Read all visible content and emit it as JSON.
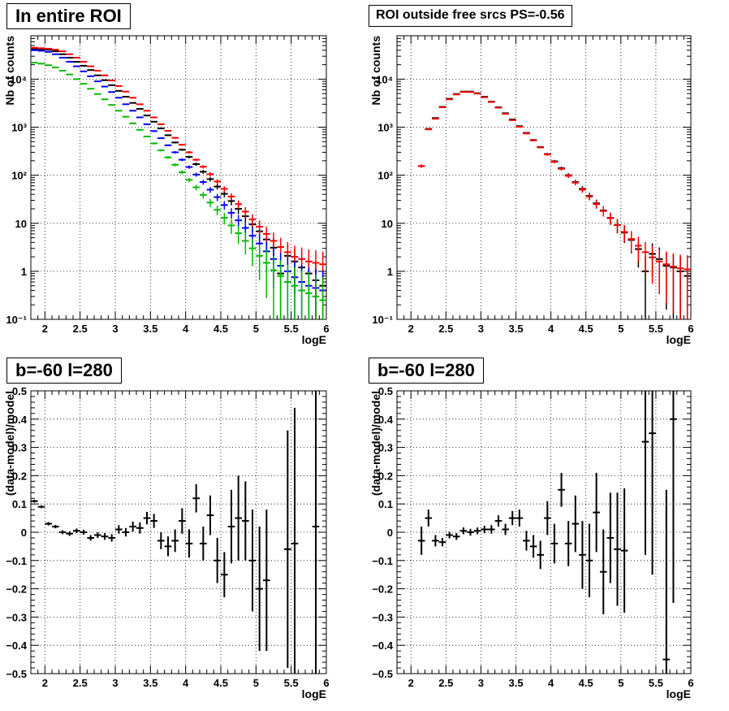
{
  "chart_data": [
    {
      "type": "scatter",
      "title": "In entire ROI",
      "xlabel": "logE",
      "ylabel": "Nb of counts",
      "xlim": [
        1.8,
        6.0
      ],
      "ylim": [
        0.1,
        80000
      ],
      "yscale": "log",
      "grid": true,
      "xticks": [
        2,
        2.5,
        3,
        3.5,
        4,
        4.5,
        5,
        5.5,
        6
      ],
      "xtick_labels": [
        "2",
        "2.5",
        "3",
        "3.5",
        "4",
        "4.5",
        "5",
        "5.5",
        "6"
      ],
      "yticks": [
        0.1,
        1,
        10,
        100,
        1000,
        10000
      ],
      "ytick_labels": [
        "10⁻¹",
        "1",
        "10",
        "10²",
        "10³",
        "10⁴"
      ],
      "x": [
        1.85,
        1.95,
        2.05,
        2.15,
        2.25,
        2.35,
        2.45,
        2.55,
        2.65,
        2.75,
        2.85,
        2.95,
        3.05,
        3.15,
        3.25,
        3.35,
        3.45,
        3.55,
        3.65,
        3.75,
        3.85,
        3.95,
        4.05,
        4.15,
        4.25,
        4.35,
        4.45,
        4.55,
        4.65,
        4.75,
        4.85,
        4.95,
        5.05,
        5.15,
        5.25,
        5.35,
        5.45,
        5.55,
        5.65,
        5.75,
        5.85,
        5.95
      ],
      "series": [
        {
          "color": "#000000",
          "values": [
            43000,
            42000,
            41000,
            38000,
            33000,
            28000,
            23000,
            19000,
            15500,
            12000,
            9500,
            7500,
            5700,
            4300,
            3200,
            2400,
            1750,
            1300,
            940,
            680,
            480,
            340,
            240,
            170,
            118,
            83,
            58,
            41,
            29,
            20,
            14,
            9.5,
            6.8,
            4.6,
            3.1,
            0.9,
            2.1,
            1.6,
            1.2,
            0.9,
            0.65,
            0.5
          ]
        },
        {
          "color": "#ff0000",
          "values": [
            45000,
            44000,
            43000,
            41000,
            38000,
            33000,
            28000,
            23000,
            18500,
            15000,
            12000,
            9400,
            7200,
            5500,
            4100,
            3000,
            2200,
            1600,
            1150,
            840,
            600,
            430,
            300,
            210,
            150,
            105,
            74,
            52,
            36,
            25,
            17.5,
            12,
            8.5,
            6,
            4.3,
            3.2,
            2.5,
            2,
            1.8,
            1.6,
            1.5,
            1.4
          ]
        },
        {
          "color": "#0000ff",
          "values": [
            40000,
            39000,
            37000,
            33000,
            28000,
            23000,
            18500,
            14500,
            11500,
            9000,
            7000,
            5400,
            4100,
            3000,
            2200,
            1600,
            1150,
            830,
            590,
            420,
            300,
            210,
            148,
            103,
            72,
            50,
            35,
            24,
            16.5,
            11.5,
            8,
            5.5,
            3.8,
            2.6,
            1.8,
            1.3,
            1.0,
            0.75,
            0.6,
            0.5,
            0.45,
            0.4
          ]
        },
        {
          "color": "#00bb00",
          "values": [
            22000,
            21000,
            19500,
            17500,
            15000,
            12500,
            10000,
            8000,
            6300,
            4900,
            3800,
            2900,
            2200,
            1650,
            1200,
            880,
            640,
            460,
            330,
            235,
            165,
            115,
            80,
            56,
            39,
            27,
            19,
            13,
            9,
            6.2,
            4.3,
            3,
            2.1,
            1.5,
            1.05,
            0.8,
            0.6,
            0.5,
            0.4,
            0.35,
            0.3,
            0.25
          ]
        }
      ]
    },
    {
      "type": "scatter",
      "title": "ROI outside free srcs PS=-0.56",
      "xlabel": "logE",
      "ylabel": "Nb of counts",
      "xlim": [
        1.8,
        6.0
      ],
      "ylim": [
        0.1,
        80000
      ],
      "yscale": "log",
      "grid": true,
      "xticks": [
        2,
        2.5,
        3,
        3.5,
        4,
        4.5,
        5,
        5.5,
        6
      ],
      "xtick_labels": [
        "2",
        "2.5",
        "3",
        "3.5",
        "4",
        "4.5",
        "5",
        "5.5",
        "6"
      ],
      "yticks": [
        0.1,
        1,
        10,
        100,
        1000,
        10000
      ],
      "ytick_labels": [
        "10⁻¹",
        "1",
        "10",
        "10²",
        "10³",
        "10⁴"
      ],
      "x": [
        2.15,
        2.25,
        2.35,
        2.45,
        2.55,
        2.65,
        2.75,
        2.85,
        2.95,
        3.05,
        3.15,
        3.25,
        3.35,
        3.45,
        3.55,
        3.65,
        3.75,
        3.85,
        3.95,
        4.05,
        4.15,
        4.25,
        4.35,
        4.45,
        4.55,
        4.65,
        4.75,
        4.85,
        4.95,
        5.05,
        5.15,
        5.25,
        5.35,
        5.45,
        5.55,
        5.65,
        5.75,
        5.85,
        5.95
      ],
      "series": [
        {
          "color": "#000000",
          "values": [
            155,
            920,
            1550,
            2650,
            3900,
            4900,
            5500,
            5500,
            5100,
            4300,
            3400,
            2600,
            1950,
            1450,
            1050,
            760,
            540,
            385,
            275,
            195,
            140,
            100,
            72,
            52,
            37,
            26,
            18.5,
            13,
            9.2,
            6.4,
            4.5,
            2.9,
            1.0,
            2.3,
            1.8,
            1.3,
            1.2,
            1.0,
            0.8
          ]
        },
        {
          "color": "#ff0000",
          "values": [
            155,
            900,
            1500,
            2600,
            3800,
            4800,
            5400,
            5400,
            5000,
            4200,
            3350,
            2550,
            1900,
            1400,
            1020,
            740,
            530,
            380,
            270,
            190,
            136,
            97,
            70,
            50,
            36,
            25,
            18,
            12.8,
            9.2,
            6.6,
            4.7,
            3.4,
            2.5,
            1.95,
            1.6,
            1.4,
            1.25,
            1.15,
            1.1
          ]
        }
      ]
    },
    {
      "type": "scatter",
      "title": "b=-60 l=280",
      "xlabel": "logE",
      "ylabel": "(data-model)/model",
      "xlim": [
        1.8,
        6.0
      ],
      "ylim": [
        -0.5,
        0.5
      ],
      "grid": true,
      "xticks": [
        2,
        2.5,
        3,
        3.5,
        4,
        4.5,
        5,
        5.5,
        6
      ],
      "xtick_labels": [
        "2",
        "2.5",
        "3",
        "3.5",
        "4",
        "4.5",
        "5",
        "5.5",
        "6"
      ],
      "yticks": [
        -0.5,
        -0.4,
        -0.3,
        -0.2,
        -0.1,
        0,
        0.1,
        0.2,
        0.3,
        0.4,
        0.5
      ],
      "ytick_labels": [
        "−0.5",
        "−0.4",
        "−0.3",
        "−0.2",
        "−0.1",
        "0",
        "0.1",
        "0.2",
        "0.3",
        "0.4",
        "0.5"
      ],
      "x": [
        1.85,
        1.95,
        2.05,
        2.15,
        2.25,
        2.35,
        2.45,
        2.55,
        2.65,
        2.75,
        2.85,
        2.95,
        3.05,
        3.15,
        3.25,
        3.35,
        3.45,
        3.55,
        3.65,
        3.75,
        3.85,
        3.95,
        4.05,
        4.15,
        4.25,
        4.35,
        4.45,
        4.55,
        4.65,
        4.75,
        4.85,
        4.95,
        5.05,
        5.15,
        5.25,
        5.35,
        5.45,
        5.55,
        5.65,
        5.75,
        5.85,
        5.95
      ],
      "values": [
        0.11,
        0.09,
        0.03,
        0.02,
        0.0,
        -0.005,
        0.005,
        0.0,
        -0.02,
        -0.01,
        -0.015,
        -0.02,
        0.01,
        0.0,
        0.02,
        0.015,
        0.05,
        0.04,
        -0.03,
        -0.05,
        -0.03,
        0.04,
        -0.04,
        0.12,
        -0.04,
        0.06,
        -0.1,
        -0.15,
        0.02,
        0.05,
        0.04,
        -0.1,
        -0.2,
        -0.17,
        null,
        null,
        -0.06,
        -0.04,
        null,
        null,
        0.02,
        null
      ],
      "errors": [
        0.005,
        0.005,
        0.006,
        0.006,
        0.007,
        0.008,
        0.008,
        0.009,
        0.01,
        0.01,
        0.012,
        0.013,
        0.015,
        0.015,
        0.018,
        0.02,
        0.022,
        0.025,
        0.03,
        0.035,
        0.04,
        0.045,
        0.05,
        0.05,
        0.06,
        0.07,
        0.08,
        0.08,
        0.13,
        0.15,
        0.14,
        0.18,
        0.22,
        0.25,
        null,
        null,
        0.42,
        0.48,
        null,
        null,
        0.55,
        null
      ]
    },
    {
      "type": "scatter",
      "title": "b=-60 l=280",
      "xlabel": "logE",
      "ylabel": "(data-model)/model",
      "xlim": [
        1.8,
        6.0
      ],
      "ylim": [
        -0.5,
        0.5
      ],
      "grid": true,
      "xticks": [
        2,
        2.5,
        3,
        3.5,
        4,
        4.5,
        5,
        5.5,
        6
      ],
      "xtick_labels": [
        "2",
        "2.5",
        "3",
        "3.5",
        "4",
        "4.5",
        "5",
        "5.5",
        "6"
      ],
      "yticks": [
        -0.5,
        -0.4,
        -0.3,
        -0.2,
        -0.1,
        0,
        0.1,
        0.2,
        0.3,
        0.4,
        0.5
      ],
      "ytick_labels": [
        "−0.5",
        "−0.4",
        "−0.3",
        "−0.2",
        "−0.1",
        "0",
        "0.1",
        "0.2",
        "0.3",
        "0.4",
        "0.5"
      ],
      "x": [
        2.15,
        2.25,
        2.35,
        2.45,
        2.55,
        2.65,
        2.75,
        2.85,
        2.95,
        3.05,
        3.15,
        3.25,
        3.35,
        3.45,
        3.55,
        3.65,
        3.75,
        3.85,
        3.95,
        4.05,
        4.15,
        4.25,
        4.35,
        4.45,
        4.55,
        4.65,
        4.75,
        4.85,
        4.95,
        5.05,
        5.15,
        5.25,
        5.35,
        5.45,
        5.55,
        5.65,
        5.75,
        5.85,
        5.95
      ],
      "values": [
        -0.03,
        0.05,
        -0.03,
        -0.035,
        -0.01,
        -0.015,
        0.005,
        0.0,
        0.005,
        0.01,
        0.01,
        0.04,
        0.01,
        0.05,
        0.05,
        -0.03,
        -0.05,
        -0.08,
        0.05,
        -0.04,
        0.15,
        -0.04,
        0.03,
        -0.08,
        -0.1,
        0.07,
        -0.14,
        -0.02,
        -0.06,
        -0.065,
        null,
        null,
        0.32,
        0.35,
        null,
        -0.45,
        0.4,
        null,
        null
      ],
      "errors": [
        0.05,
        0.03,
        0.02,
        0.015,
        0.012,
        0.012,
        0.012,
        0.012,
        0.012,
        0.013,
        0.015,
        0.02,
        0.02,
        0.025,
        0.03,
        0.035,
        0.04,
        0.05,
        0.06,
        0.07,
        0.06,
        0.08,
        0.1,
        0.12,
        0.13,
        0.14,
        0.15,
        0.16,
        0.2,
        0.22,
        null,
        null,
        0.4,
        0.5,
        null,
        0.6,
        0.65,
        null,
        null
      ]
    }
  ]
}
